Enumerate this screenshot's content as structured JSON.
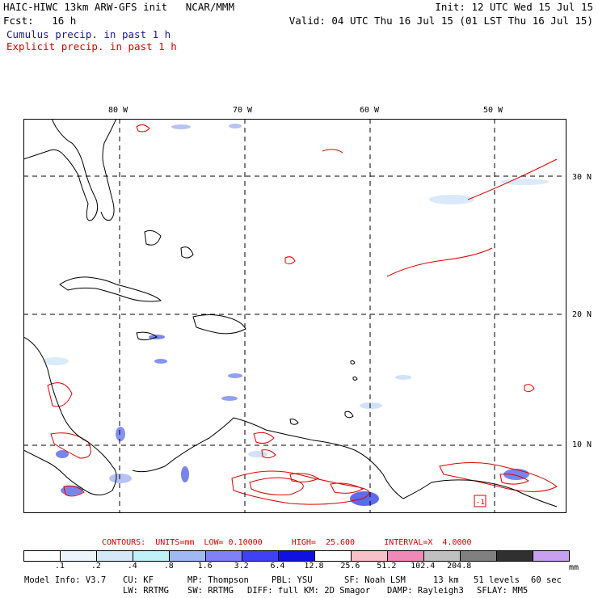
{
  "header": {
    "title_left": "HAIC-HIWC 13km ARW-GFS init   NCAR/MMM",
    "init": "Init: 12 UTC Wed 15 Jul 15",
    "fcst": "Fcst:   16 h",
    "valid": "Valid: 04 UTC Thu 16 Jul 15 (01 LST Thu 16 Jul 15)",
    "cumulus": "Cumulus precip. in past 1 h",
    "explicit": "Explicit precip. in past 1 h"
  },
  "map": {
    "lon_labels": [
      "80 W",
      "70 W",
      "60 W",
      "50 W"
    ],
    "lat_labels": [
      "30 N",
      "20 N",
      "10 N"
    ],
    "box_label": "-1"
  },
  "contours_line": {
    "text": "CONTOURS:  UNITS=mm  LOW= 0.10000      HIGH=  25.600      INTERVAL=X  4.0000"
  },
  "legend": {
    "colors": [
      "#ffffff",
      "#ecf4fb",
      "#d4e8f7",
      "#c0f0f8",
      "#a0b8f4",
      "#8080f8",
      "#4040f4",
      "#1010e0",
      "#ffffff",
      "#f8c0c8",
      "#f088b8",
      "#c0c0c0",
      "#808080",
      "#303030",
      "#c8a0f0"
    ],
    "ticks": [
      ".1",
      ".2",
      ".4",
      ".8",
      "1.6",
      "3.2",
      "6.4",
      "12.8",
      "25.6",
      "51.2",
      "102.4",
      "204.8"
    ],
    "unit": "mm"
  },
  "footer": {
    "line1": [
      "Model Info: V3.7",
      "CU: KF",
      "MP: Thompson",
      "PBL: YSU",
      "SF: Noah LSM",
      "13 km",
      "51 levels",
      "60 sec"
    ],
    "line2": [
      "LW: RRTMG",
      "SW: RRTMG",
      "DIFF: full",
      "KM: 2D Smagor",
      "DAMP: Rayleigh3",
      "SFLAY: MM5"
    ]
  },
  "colors": {
    "explicit": "#e00000",
    "cumulus": "#1a1a9a",
    "grid": "#000000"
  }
}
